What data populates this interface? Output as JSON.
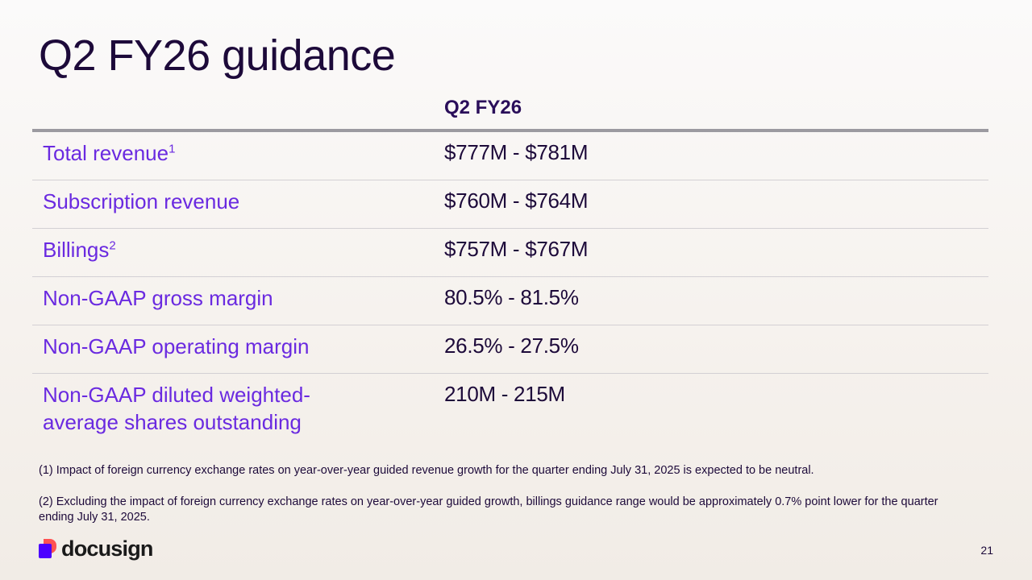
{
  "title": "Q2 FY26 guidance",
  "table": {
    "column_header": "Q2 FY26",
    "rows": [
      {
        "label": "Total revenue",
        "footnote_ref": "1",
        "value": "$777M - $781M"
      },
      {
        "label": "Subscription revenue",
        "footnote_ref": "",
        "value": "$760M - $764M"
      },
      {
        "label": "Billings",
        "footnote_ref": "2",
        "value": "$757M - $767M"
      },
      {
        "label": "Non-GAAP gross margin",
        "footnote_ref": "",
        "value": "80.5% - 81.5%"
      },
      {
        "label": "Non-GAAP operating margin",
        "footnote_ref": "",
        "value": "26.5% - 27.5%"
      },
      {
        "label": "Non-GAAP diluted weighted-average shares outstanding",
        "footnote_ref": "",
        "value": "210M - 215M"
      }
    ]
  },
  "footnotes": [
    "(1) Impact of foreign currency exchange rates on year-over-year guided revenue growth for the quarter ending July 31, 2025 is expected to be neutral.",
    "(2) Excluding the impact of foreign currency exchange rates on year-over-year guided growth, billings guidance range would be approximately 0.7% point lower for the quarter ending July 31, 2025."
  ],
  "logo": {
    "text": "docusign",
    "icon": "docusign-logo-mark"
  },
  "page_number": "21",
  "colors": {
    "title": "#1d0a3a",
    "label": "#6a2ae0",
    "header": "#2a0e5a",
    "logo_purple": "#4c00ff",
    "logo_coral": "#ff5252"
  }
}
